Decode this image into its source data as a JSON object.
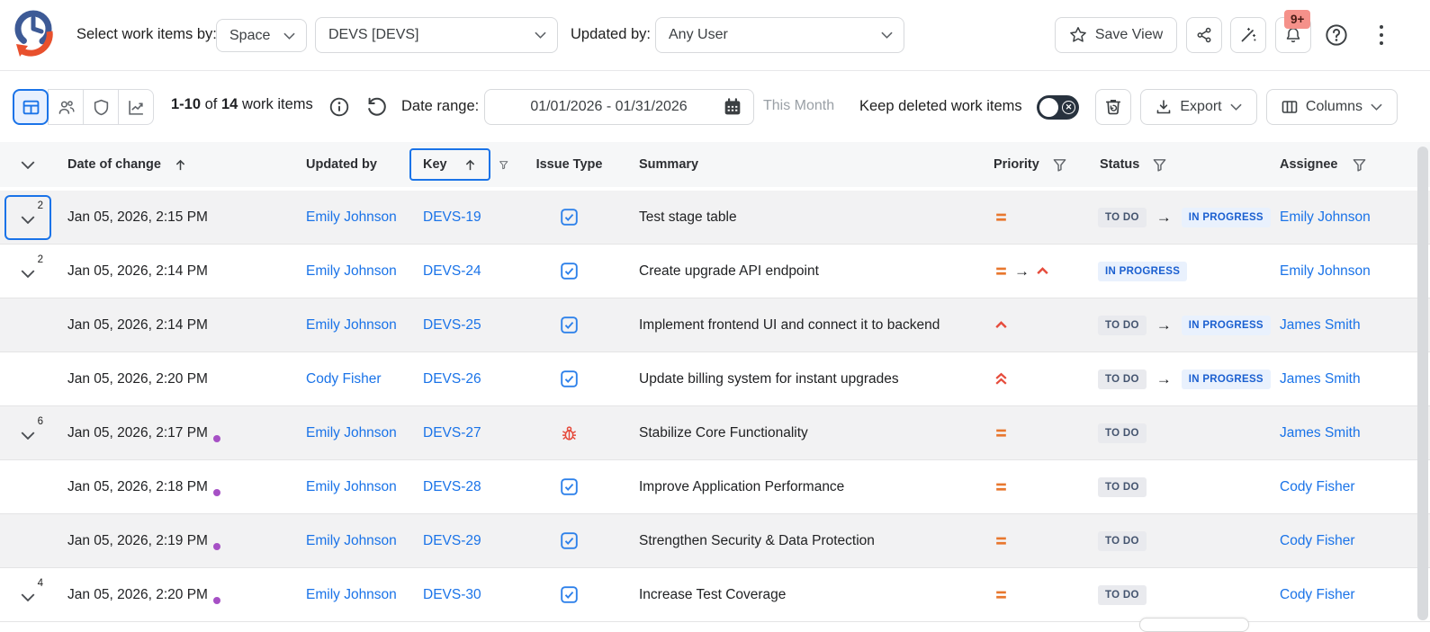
{
  "header": {
    "select_label": "Select work items by:",
    "space_dropdown": "Space",
    "project_dropdown": "DEVS [DEVS]",
    "updated_by_label": "Updated by:",
    "user_dropdown": "Any User",
    "save_view_label": "Save View",
    "notification_badge": "9+"
  },
  "toolbar": {
    "count_range": "1-10",
    "count_of": "of",
    "count_total": "14",
    "count_items": "work items",
    "date_range_label": "Date range:",
    "date_range_value": "01/01/2026 - 01/31/2026",
    "date_range_hint": "This Month",
    "keep_deleted_label": "Keep deleted work items",
    "export_label": "Export",
    "columns_label": "Columns"
  },
  "table": {
    "columns": {
      "date": "Date of change",
      "updated_by": "Updated by",
      "key": "Key",
      "issue_type": "Issue Type",
      "summary": "Summary",
      "priority": "Priority",
      "status": "Status",
      "assignee": "Assignee"
    },
    "rows": [
      {
        "expand": "2",
        "focused": true,
        "date": "Jan 05, 2026, 2:15 PM",
        "dot": false,
        "updated_by": "Emily Johnson",
        "key": "DEVS-19",
        "type": "task",
        "summary": "Test stage table",
        "priority": [
          "medium"
        ],
        "status": [
          "TO DO",
          "IN PROGRESS"
        ],
        "assignee": "Emily Johnson",
        "shade": true
      },
      {
        "expand": "2",
        "focused": false,
        "date": "Jan 05, 2026, 2:14 PM",
        "dot": false,
        "updated_by": "Emily Johnson",
        "key": "DEVS-24",
        "type": "task",
        "summary": "Create upgrade API endpoint",
        "priority": [
          "medium",
          "high"
        ],
        "status": [
          "IN PROGRESS"
        ],
        "assignee": "Emily Johnson",
        "shade": false
      },
      {
        "expand": null,
        "focused": false,
        "date": "Jan 05, 2026, 2:14 PM",
        "dot": false,
        "updated_by": "Emily Johnson",
        "key": "DEVS-25",
        "type": "task",
        "summary": "Implement frontend UI and connect it to backend",
        "priority": [
          "high"
        ],
        "status": [
          "TO DO",
          "IN PROGRESS"
        ],
        "assignee": "James Smith",
        "shade": true
      },
      {
        "expand": null,
        "focused": false,
        "date": "Jan 05, 2026, 2:20 PM",
        "dot": false,
        "updated_by": "Cody Fisher",
        "key": "DEVS-26",
        "type": "task",
        "summary": "Update billing system for instant upgrades",
        "priority": [
          "highest"
        ],
        "status": [
          "TO DO",
          "IN PROGRESS"
        ],
        "assignee": "James Smith",
        "shade": false
      },
      {
        "expand": "6",
        "focused": false,
        "date": "Jan 05, 2026, 2:17 PM",
        "dot": true,
        "updated_by": "Emily Johnson",
        "key": "DEVS-27",
        "type": "bug",
        "summary": "Stabilize Core Functionality",
        "priority": [
          "medium"
        ],
        "status": [
          "TO DO"
        ],
        "assignee": "James Smith",
        "shade": true
      },
      {
        "expand": null,
        "focused": false,
        "date": "Jan 05, 2026, 2:18 PM",
        "dot": true,
        "updated_by": "Emily Johnson",
        "key": "DEVS-28",
        "type": "task",
        "summary": "Improve Application Performance",
        "priority": [
          "medium"
        ],
        "status": [
          "TO DO"
        ],
        "assignee": "Cody Fisher",
        "shade": false
      },
      {
        "expand": null,
        "focused": false,
        "date": "Jan 05, 2026, 2:19 PM",
        "dot": true,
        "updated_by": "Emily Johnson",
        "key": "DEVS-29",
        "type": "task",
        "summary": "Strengthen Security & Data Protection",
        "priority": [
          "medium"
        ],
        "status": [
          "TO DO"
        ],
        "assignee": "Cody Fisher",
        "shade": true
      },
      {
        "expand": "4",
        "focused": false,
        "date": "Jan 05, 2026, 2:20 PM",
        "dot": true,
        "updated_by": "Emily Johnson",
        "key": "DEVS-30",
        "type": "task",
        "summary": "Increase Test Coverage",
        "priority": [
          "medium"
        ],
        "status": [
          "TO DO"
        ],
        "assignee": "Cody Fisher",
        "shade": false
      }
    ]
  },
  "icons": {
    "logo": "history-clock",
    "priority_medium": "orange-equals",
    "priority_high": "red-chevron-up",
    "priority_highest": "red-double-chevron-up",
    "issue_task": "blue-check-square",
    "issue_bug": "red-bug"
  },
  "colors": {
    "accent": "#1a73e8",
    "selected_bg": "#e8f0fe",
    "todo_bg": "#e9eaee",
    "todo_text": "#44546f",
    "inprogress_bg": "#e9f1fd",
    "inprogress_text": "#1a5fd0",
    "priority_medium": "#e8772e",
    "priority_high": "#e64c3c",
    "unread_dot": "#a650c5",
    "notification_bg": "#f5918a",
    "toggle_bg": "#28323e"
  }
}
